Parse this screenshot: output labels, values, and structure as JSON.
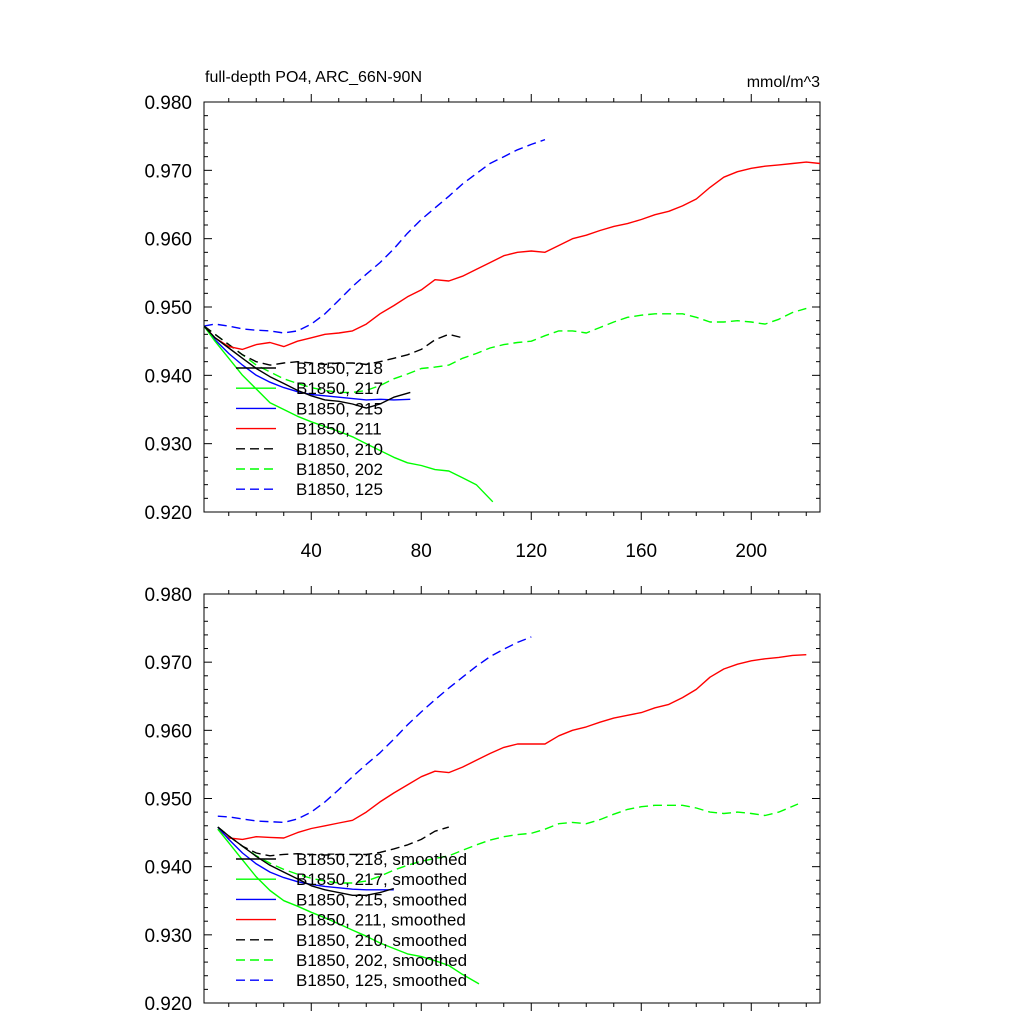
{
  "header": {
    "title": "full-depth PO4, ARC_66N-90N",
    "units": "mmol/m^3"
  },
  "chart_data": [
    {
      "type": "line",
      "title": "full-depth PO4, ARC_66N-90N",
      "units": "mmol/m^3",
      "xlabel": "",
      "ylabel": "",
      "xlim": [
        1,
        225
      ],
      "ylim": [
        0.92,
        0.98
      ],
      "x_ticks": [
        40,
        80,
        120,
        160,
        200
      ],
      "x_tick_labels": [
        "40",
        "80",
        "120",
        "160",
        "200"
      ],
      "y_ticks": [
        0.92,
        0.93,
        0.94,
        0.95,
        0.96,
        0.97,
        0.98
      ],
      "y_tick_labels": [
        "0.920",
        "0.930",
        "0.940",
        "0.950",
        "0.960",
        "0.970",
        "0.980"
      ],
      "grid": false,
      "legend_position": "lower-left",
      "series": [
        {
          "name": "B1850, 218",
          "color": "#000000",
          "dash": "solid",
          "x": [
            1,
            5,
            10,
            15,
            20,
            25,
            30,
            35,
            40,
            45,
            50,
            55,
            60,
            65,
            70,
            76
          ],
          "y": [
            0.9472,
            0.9455,
            0.944,
            0.9425,
            0.941,
            0.9398,
            0.9388,
            0.9378,
            0.937,
            0.9364,
            0.9362,
            0.9358,
            0.9352,
            0.9358,
            0.9368,
            0.9375
          ]
        },
        {
          "name": "B1850, 217",
          "color": "#00ff00",
          "dash": "solid",
          "x": [
            1,
            5,
            10,
            15,
            20,
            25,
            30,
            35,
            40,
            45,
            50,
            55,
            60,
            65,
            70,
            75,
            80,
            85,
            90,
            95,
            100,
            106
          ],
          "y": [
            0.9472,
            0.945,
            0.9425,
            0.94,
            0.938,
            0.936,
            0.935,
            0.934,
            0.9332,
            0.9325,
            0.9318,
            0.931,
            0.93,
            0.929,
            0.928,
            0.9272,
            0.9268,
            0.9262,
            0.926,
            0.925,
            0.924,
            0.9215
          ]
        },
        {
          "name": "B1850, 215",
          "color": "#0000ff",
          "dash": "solid",
          "x": [
            1,
            5,
            10,
            15,
            20,
            25,
            30,
            35,
            40,
            45,
            50,
            55,
            60,
            65,
            70,
            76
          ],
          "y": [
            0.9472,
            0.9452,
            0.9432,
            0.9415,
            0.94,
            0.939,
            0.9382,
            0.9376,
            0.9372,
            0.937,
            0.9368,
            0.9366,
            0.9364,
            0.9365,
            0.9364,
            0.9365
          ]
        },
        {
          "name": "B1850, 211",
          "color": "#ff0000",
          "dash": "solid",
          "x": [
            1,
            5,
            10,
            15,
            20,
            25,
            30,
            35,
            40,
            45,
            50,
            55,
            60,
            65,
            70,
            75,
            80,
            85,
            90,
            95,
            100,
            105,
            110,
            115,
            120,
            125,
            130,
            135,
            140,
            145,
            150,
            155,
            160,
            165,
            170,
            175,
            180,
            185,
            190,
            195,
            200,
            205,
            210,
            215,
            220,
            225
          ],
          "y": [
            0.9472,
            0.9455,
            0.9442,
            0.9438,
            0.9445,
            0.9448,
            0.9442,
            0.945,
            0.9455,
            0.946,
            0.9462,
            0.9465,
            0.9475,
            0.949,
            0.9502,
            0.9515,
            0.9525,
            0.954,
            0.9538,
            0.9545,
            0.9555,
            0.9565,
            0.9575,
            0.958,
            0.9582,
            0.958,
            0.959,
            0.96,
            0.9605,
            0.9612,
            0.9618,
            0.9622,
            0.9628,
            0.9635,
            0.964,
            0.9648,
            0.9658,
            0.9675,
            0.969,
            0.9698,
            0.9703,
            0.9706,
            0.9708,
            0.971,
            0.9712,
            0.971
          ]
        },
        {
          "name": "B1850, 210",
          "color": "#000000",
          "dash": "dashed",
          "x": [
            1,
            5,
            10,
            15,
            20,
            25,
            30,
            35,
            40,
            45,
            50,
            55,
            60,
            65,
            70,
            75,
            80,
            85,
            90,
            95
          ],
          "y": [
            0.9472,
            0.946,
            0.9445,
            0.943,
            0.942,
            0.9415,
            0.9418,
            0.942,
            0.9418,
            0.9416,
            0.9418,
            0.9418,
            0.9416,
            0.942,
            0.9425,
            0.943,
            0.9438,
            0.9452,
            0.946,
            0.9455
          ]
        },
        {
          "name": "B1850, 202",
          "color": "#00ff00",
          "dash": "dashed",
          "x": [
            1,
            5,
            10,
            15,
            20,
            25,
            30,
            35,
            40,
            45,
            50,
            55,
            60,
            65,
            70,
            75,
            80,
            85,
            90,
            95,
            100,
            105,
            110,
            115,
            120,
            125,
            130,
            135,
            140,
            145,
            150,
            155,
            160,
            165,
            170,
            175,
            180,
            185,
            190,
            195,
            200,
            205,
            210,
            215,
            220
          ],
          "y": [
            0.9472,
            0.946,
            0.9445,
            0.943,
            0.9415,
            0.9405,
            0.9395,
            0.9388,
            0.9382,
            0.9378,
            0.9375,
            0.9375,
            0.9378,
            0.9385,
            0.9395,
            0.9402,
            0.941,
            0.9412,
            0.9415,
            0.9425,
            0.9432,
            0.944,
            0.9445,
            0.9448,
            0.945,
            0.9458,
            0.9465,
            0.9465,
            0.9462,
            0.947,
            0.9478,
            0.9485,
            0.9488,
            0.949,
            0.949,
            0.949,
            0.9485,
            0.9478,
            0.9478,
            0.948,
            0.9478,
            0.9475,
            0.9482,
            0.9492,
            0.9498
          ]
        },
        {
          "name": "B1850, 125",
          "color": "#0000ff",
          "dash": "dashed",
          "x": [
            1,
            5,
            10,
            15,
            20,
            25,
            30,
            35,
            40,
            45,
            50,
            55,
            60,
            65,
            70,
            75,
            80,
            85,
            90,
            95,
            100,
            105,
            110,
            115,
            120,
            125
          ],
          "y": [
            0.9472,
            0.9475,
            0.9472,
            0.9468,
            0.9466,
            0.9465,
            0.9462,
            0.9465,
            0.9475,
            0.949,
            0.951,
            0.953,
            0.9548,
            0.9565,
            0.9585,
            0.9608,
            0.9628,
            0.9645,
            0.9662,
            0.968,
            0.9695,
            0.971,
            0.972,
            0.973,
            0.9738,
            0.9745
          ]
        }
      ]
    },
    {
      "type": "line",
      "title": "",
      "xlabel": "",
      "ylabel": "",
      "xlim": [
        1,
        225
      ],
      "ylim": [
        0.92,
        0.98
      ],
      "x_ticks": [
        40,
        80,
        120,
        160,
        200
      ],
      "x_tick_labels": [],
      "y_ticks": [
        0.92,
        0.93,
        0.94,
        0.95,
        0.96,
        0.97,
        0.98
      ],
      "y_tick_labels": [
        "0.920",
        "0.930",
        "0.940",
        "0.950",
        "0.960",
        "0.970",
        "0.980"
      ],
      "grid": false,
      "legend_position": "lower-left",
      "series": [
        {
          "name": "B1850, 218, smoothed",
          "color": "#000000",
          "dash": "solid",
          "x": [
            6,
            10,
            15,
            20,
            25,
            30,
            35,
            40,
            45,
            50,
            55,
            60,
            65,
            70
          ],
          "y": [
            0.9458,
            0.9445,
            0.943,
            0.9415,
            0.9402,
            0.9392,
            0.9382,
            0.9372,
            0.9366,
            0.9362,
            0.9358,
            0.9358,
            0.9362,
            0.9368
          ]
        },
        {
          "name": "B1850, 217, smoothed",
          "color": "#00ff00",
          "dash": "solid",
          "x": [
            6,
            10,
            15,
            20,
            25,
            30,
            35,
            40,
            45,
            50,
            55,
            60,
            65,
            70,
            75,
            80,
            85,
            90,
            95,
            101
          ],
          "y": [
            0.9455,
            0.9435,
            0.941,
            0.9385,
            0.9365,
            0.935,
            0.9342,
            0.9333,
            0.9325,
            0.9316,
            0.9307,
            0.9298,
            0.9288,
            0.928,
            0.9272,
            0.9268,
            0.9262,
            0.9255,
            0.9242,
            0.9228
          ]
        },
        {
          "name": "B1850, 215, smoothed",
          "color": "#0000ff",
          "dash": "solid",
          "x": [
            6,
            10,
            15,
            20,
            25,
            30,
            35,
            40,
            45,
            50,
            55,
            60,
            65,
            70
          ],
          "y": [
            0.9458,
            0.944,
            0.942,
            0.9404,
            0.9392,
            0.9384,
            0.9378,
            0.9374,
            0.9371,
            0.9369,
            0.9367,
            0.9366,
            0.9366,
            0.9366
          ]
        },
        {
          "name": "B1850, 211, smoothed",
          "color": "#ff0000",
          "dash": "solid",
          "x": [
            6,
            10,
            15,
            20,
            25,
            30,
            35,
            40,
            45,
            50,
            55,
            60,
            65,
            70,
            75,
            80,
            85,
            90,
            95,
            100,
            105,
            110,
            115,
            120,
            125,
            130,
            135,
            140,
            145,
            150,
            155,
            160,
            165,
            170,
            175,
            180,
            185,
            190,
            195,
            200,
            205,
            210,
            215,
            220
          ],
          "y": [
            0.9455,
            0.9442,
            0.944,
            0.9444,
            0.9443,
            0.9442,
            0.945,
            0.9456,
            0.946,
            0.9464,
            0.9468,
            0.948,
            0.9495,
            0.9508,
            0.952,
            0.9532,
            0.954,
            0.9538,
            0.9546,
            0.9556,
            0.9566,
            0.9575,
            0.958,
            0.958,
            0.958,
            0.9592,
            0.96,
            0.9605,
            0.9612,
            0.9618,
            0.9622,
            0.9626,
            0.9633,
            0.9638,
            0.9648,
            0.966,
            0.9678,
            0.969,
            0.9697,
            0.9702,
            0.9705,
            0.9707,
            0.971,
            0.9711
          ]
        },
        {
          "name": "B1850, 210, smoothed",
          "color": "#000000",
          "dash": "dashed",
          "x": [
            6,
            10,
            15,
            20,
            25,
            30,
            35,
            40,
            45,
            50,
            55,
            60,
            65,
            70,
            75,
            80,
            85,
            90
          ],
          "y": [
            0.9458,
            0.9445,
            0.943,
            0.942,
            0.9416,
            0.9418,
            0.9419,
            0.9418,
            0.9417,
            0.9418,
            0.9418,
            0.9418,
            0.9421,
            0.9426,
            0.9432,
            0.944,
            0.9452,
            0.9458
          ]
        },
        {
          "name": "B1850, 202, smoothed",
          "color": "#00ff00",
          "dash": "dashed",
          "x": [
            6,
            10,
            15,
            20,
            25,
            30,
            35,
            40,
            45,
            50,
            55,
            60,
            65,
            70,
            75,
            80,
            85,
            90,
            95,
            100,
            105,
            110,
            115,
            120,
            125,
            130,
            135,
            140,
            145,
            150,
            155,
            160,
            165,
            170,
            175,
            180,
            185,
            190,
            195,
            200,
            205,
            210,
            217
          ],
          "y": [
            0.9458,
            0.9445,
            0.943,
            0.9416,
            0.9405,
            0.9396,
            0.9389,
            0.9383,
            0.9379,
            0.9376,
            0.9376,
            0.9379,
            0.9386,
            0.9395,
            0.9402,
            0.9408,
            0.9412,
            0.9416,
            0.9424,
            0.9432,
            0.9439,
            0.9444,
            0.9447,
            0.9449,
            0.9455,
            0.9463,
            0.9465,
            0.9463,
            0.9469,
            0.9477,
            0.9484,
            0.9488,
            0.949,
            0.949,
            0.949,
            0.9486,
            0.948,
            0.9478,
            0.948,
            0.9478,
            0.9475,
            0.948,
            0.9492
          ]
        },
        {
          "name": "B1850, 125, smoothed",
          "color": "#0000ff",
          "dash": "dashed",
          "x": [
            6,
            10,
            15,
            20,
            25,
            30,
            35,
            40,
            45,
            50,
            55,
            60,
            65,
            70,
            75,
            80,
            85,
            90,
            95,
            100,
            105,
            110,
            115,
            120
          ],
          "y": [
            0.9474,
            0.9473,
            0.947,
            0.9467,
            0.9466,
            0.9465,
            0.947,
            0.948,
            0.9495,
            0.9513,
            0.9532,
            0.955,
            0.9567,
            0.9587,
            0.9608,
            0.9627,
            0.9645,
            0.9662,
            0.9678,
            0.9694,
            0.9708,
            0.9719,
            0.9729,
            0.9737
          ]
        }
      ]
    }
  ]
}
